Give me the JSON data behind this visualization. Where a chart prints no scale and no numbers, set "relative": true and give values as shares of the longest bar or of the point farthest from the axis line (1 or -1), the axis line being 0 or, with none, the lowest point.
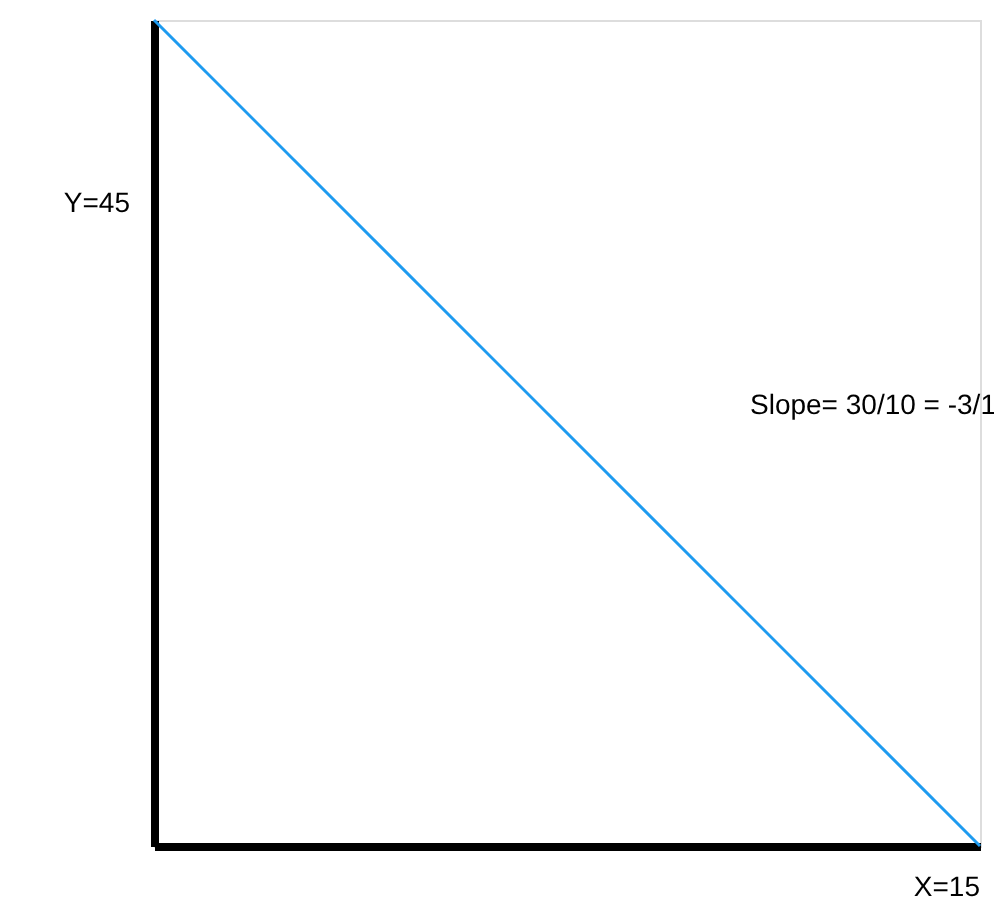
{
  "chart_data": {
    "type": "line",
    "categories": [
      null,
      null
    ],
    "relative": true,
    "series": [
      {
        "color": "#1e9bf0",
        "values": [
          1,
          0
        ]
      }
    ],
    "grid": false,
    "annotations": [
      "Y=45",
      "X=15",
      "Slope= 30/10 = -3/1"
    ]
  }
}
